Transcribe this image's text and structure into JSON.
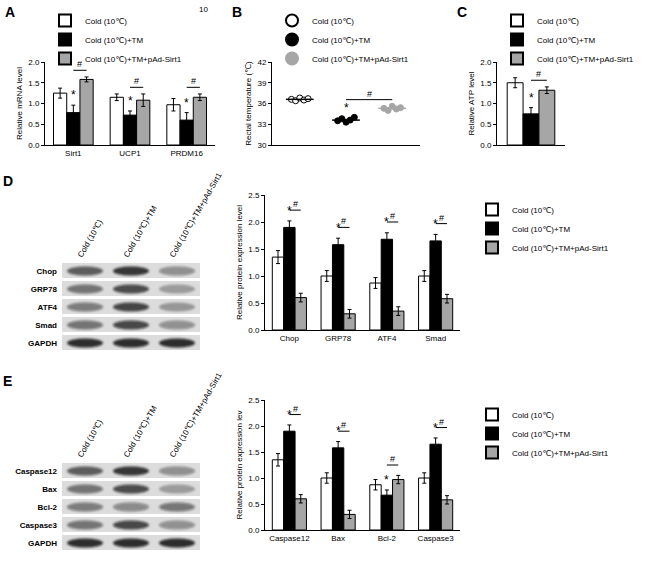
{
  "chart_data": [
    {
      "title": "A",
      "type": "bar",
      "categories": [
        "Sirt1",
        "UCP1",
        "PRDM16"
      ],
      "series": [
        {
          "name": "Cold (10℃)",
          "color": "#ffffff",
          "values": [
            1.25,
            1.15,
            0.97
          ],
          "errors": [
            0.12,
            0.08,
            0.15
          ]
        },
        {
          "name": "Cold (10℃)+TM",
          "color": "#000000",
          "values": [
            0.78,
            0.72,
            0.6
          ],
          "errors": [
            0.18,
            0.1,
            0.18
          ]
        },
        {
          "name": "Cold (10℃)+TM+pAd-Sirt1",
          "color": "#a6a6a6",
          "values": [
            1.58,
            1.08,
            1.15
          ],
          "errors": [
            0.06,
            0.15,
            0.08
          ]
        }
      ],
      "ylabel": "Relative mRNA level",
      "ylim": [
        0,
        2
      ],
      "yticks": [
        {
          "value": 0,
          "label": "0.0"
        },
        {
          "value": 0.5,
          "label": "0.5"
        },
        {
          "value": 1,
          "label": "1.0"
        },
        {
          "value": 1.5,
          "label": "1.5"
        },
        {
          "value": 2,
          "label": "2.0"
        }
      ],
      "legend": "upper left",
      "annotations": [
        {
          "text": "10"
        },
        {
          "text": "*",
          "category": "Sirt1",
          "series": 1
        },
        {
          "text": "*",
          "category": "UCP1",
          "series": 1
        },
        {
          "text": "*",
          "category": "PRDM16",
          "series": 1
        },
        {
          "text": "#",
          "category": "Sirt1",
          "from": 1,
          "to": 2
        },
        {
          "text": "#",
          "category": "UCP1",
          "from": 1,
          "to": 2
        },
        {
          "text": "#",
          "category": "PRDM16",
          "from": 1,
          "to": 2
        }
      ]
    },
    {
      "title": "B",
      "type": "scatter",
      "series": [
        {
          "name": "Cold (10℃)",
          "color": "#ffffff",
          "values": [
            36.6,
            36.4,
            36.8,
            36.5,
            36.7
          ],
          "mean": 36.6
        },
        {
          "name": "Cold (10℃)+TM",
          "color": "#000000",
          "values": [
            33.5,
            33.8,
            33.3,
            33.6,
            34.0
          ],
          "mean": 33.6
        },
        {
          "name": "Cold (10℃)+TM+pAd-Sirt1",
          "color": "#a6a6a6",
          "values": [
            35.3,
            35.0,
            35.6,
            35.2,
            35.4
          ],
          "mean": 35.3
        }
      ],
      "marker": "circle",
      "ylabel": "Rectal temperature (℃)",
      "ylim": [
        30,
        42
      ],
      "yticks": [
        30,
        33,
        36,
        39,
        42
      ],
      "tick_labels": "y",
      "legend": "upper left",
      "annotations": [
        {
          "text": "*",
          "series": 1
        },
        {
          "text": "#",
          "from": 1,
          "to": 2
        }
      ]
    },
    {
      "title": "C",
      "type": "bar",
      "categories": [
        null
      ],
      "series": [
        {
          "name": "Cold (10℃)",
          "color": "#ffffff",
          "values": [
            1.5
          ],
          "errors": [
            0.12
          ]
        },
        {
          "name": "Cold (10℃)+TM",
          "color": "#000000",
          "values": [
            0.75
          ],
          "errors": [
            0.15
          ]
        },
        {
          "name": "Cold (10℃)+TM+pAd-Sirt1",
          "color": "#a6a6a6",
          "values": [
            1.32
          ],
          "errors": [
            0.08
          ]
        }
      ],
      "ylabel": "Relative ATP level",
      "ylim": [
        0,
        2
      ],
      "yticks": [
        {
          "value": 0,
          "label": "0.0"
        },
        {
          "value": 0.5,
          "label": "0.5"
        },
        {
          "value": 1,
          "label": "1.0"
        },
        {
          "value": 1.5,
          "label": "1.5"
        },
        {
          "value": 2,
          "label": "2.0"
        }
      ],
      "tick_labels": "y",
      "legend": "upper left",
      "annotations": [
        {
          "text": "*",
          "category": null,
          "series": 1
        },
        {
          "text": "#",
          "category": null,
          "from": 1,
          "to": 2
        }
      ]
    },
    {
      "type": "bar",
      "categories": [
        "Chop",
        "GRP78",
        "ATF4",
        "Smad"
      ],
      "series": [
        {
          "name": "Cold (10℃)",
          "color": "#ffffff",
          "values": [
            1.35,
            1.0,
            0.87,
            1.0
          ],
          "errors": [
            0.12,
            0.1,
            0.1,
            0.1
          ]
        },
        {
          "name": "Cold (10℃)+TM",
          "color": "#000000",
          "values": [
            1.9,
            1.58,
            1.68,
            1.65
          ],
          "errors": [
            0.12,
            0.12,
            0.12,
            0.12
          ]
        },
        {
          "name": "Cold (10℃)+TM+pAd-Sirt1",
          "color": "#a6a6a6",
          "values": [
            0.6,
            0.3,
            0.35,
            0.58
          ],
          "errors": [
            0.08,
            0.08,
            0.08,
            0.08
          ]
        }
      ],
      "ylabel": "Relative protein expression level",
      "ylim": [
        0,
        2.5
      ],
      "yticks": [
        {
          "value": 0,
          "label": "0.0"
        },
        {
          "value": 0.5,
          "label": "0.5"
        },
        {
          "value": 1,
          "label": "1.0"
        },
        {
          "value": 1.5,
          "label": "1.5"
        },
        {
          "value": 2,
          "label": "2.0"
        },
        {
          "value": 2.5,
          "label": "2.5"
        }
      ],
      "legend": "upper right",
      "annotations": [
        {
          "text": "*",
          "category": "Chop",
          "series": 1
        },
        {
          "text": "*",
          "category": "GRP78",
          "series": 1
        },
        {
          "text": "*",
          "category": "ATF4",
          "series": 1
        },
        {
          "text": "*",
          "category": "Smad",
          "series": 1
        },
        {
          "text": "#",
          "category": "Chop",
          "from": 1,
          "to": 2
        },
        {
          "text": "#",
          "category": "GRP78",
          "from": 1,
          "to": 2
        },
        {
          "text": "#",
          "category": "ATF4",
          "from": 1,
          "to": 2
        },
        {
          "text": "#",
          "category": "Smad",
          "from": 1,
          "to": 2
        }
      ]
    },
    {
      "type": "bar",
      "categories": [
        "Caspase12",
        "Bax",
        "Bcl-2",
        "Caspase3"
      ],
      "series": [
        {
          "name": "Cold (10℃)",
          "color": "#ffffff",
          "values": [
            1.35,
            1.0,
            0.87,
            1.0
          ],
          "errors": [
            0.12,
            0.1,
            0.1,
            0.1
          ]
        },
        {
          "name": "Cold (10℃)+TM",
          "color": "#000000",
          "values": [
            1.9,
            1.58,
            0.67,
            1.65
          ],
          "errors": [
            0.12,
            0.12,
            0.1,
            0.12
          ]
        },
        {
          "name": "Cold (10℃)+TM+pAd-Sirt1",
          "color": "#a6a6a6",
          "values": [
            0.6,
            0.3,
            0.97,
            0.58
          ],
          "errors": [
            0.08,
            0.08,
            0.08,
            0.08
          ]
        }
      ],
      "ylabel": "Relative protein expression lev",
      "ylim": [
        0,
        2.5
      ],
      "yticks": [
        {
          "value": 0,
          "label": "0.0"
        },
        {
          "value": 0.5,
          "label": "0.5"
        },
        {
          "value": 1,
          "label": "1.0"
        },
        {
          "value": 1.5,
          "label": "1.5"
        },
        {
          "value": 2,
          "label": "2.0"
        },
        {
          "value": 2.5,
          "label": "2.5"
        }
      ],
      "legend": "upper right",
      "annotations": [
        {
          "text": "*",
          "category": "Caspase12",
          "series": 1
        },
        {
          "text": "*",
          "category": "Bax",
          "series": 1
        },
        {
          "text": "*",
          "category": "Bcl-2",
          "series": 1
        },
        {
          "text": "*",
          "category": "Caspase3",
          "series": 1
        },
        {
          "text": "#",
          "category": "Caspase12",
          "from": 1,
          "to": 2
        },
        {
          "text": "#",
          "category": "Bax",
          "from": 1,
          "to": 2
        },
        {
          "text": "#",
          "category": "Bcl-2",
          "from": 1,
          "to": 2
        },
        {
          "text": "#",
          "category": "Caspase3",
          "from": 1,
          "to": 2
        }
      ]
    }
  ],
  "blots": [
    {
      "panel": "D",
      "lanes": [
        "Cold (10℃)",
        "Cold (10℃)+TM",
        "Cold (10℃)+TM+pAd-Sirt1"
      ],
      "rows": [
        "Chop",
        "GRP78",
        "ATF4",
        "Smad",
        "GAPDH"
      ]
    },
    {
      "panel": "E",
      "lanes": [
        "Cold (10℃)",
        "Cold (10℃)+TM",
        "Cold (10℃)+TM+pAd-Sirt1"
      ],
      "rows": [
        "Caspase12",
        "Bax",
        "Bcl-2",
        "Caspase3",
        "GAPDH"
      ]
    }
  ]
}
